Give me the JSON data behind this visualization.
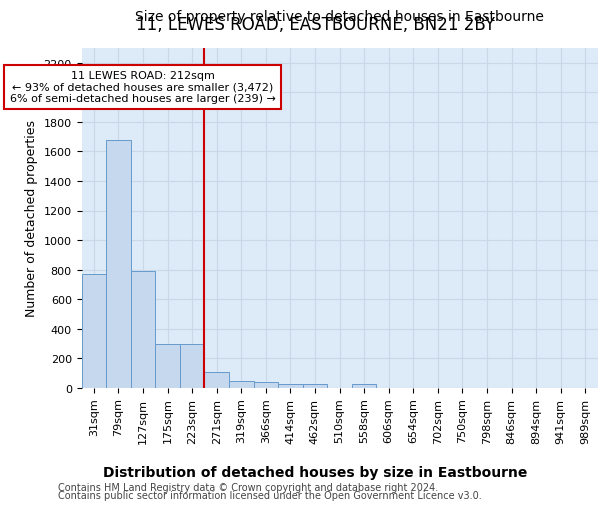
{
  "title": "11, LEWES ROAD, EASTBOURNE, BN21 2BY",
  "subtitle": "Size of property relative to detached houses in Eastbourne",
  "xlabel": "Distribution of detached houses by size in Eastbourne",
  "ylabel": "Number of detached properties",
  "footer1": "Contains HM Land Registry data © Crown copyright and database right 2024.",
  "footer2": "Contains public sector information licensed under the Open Government Licence v3.0.",
  "bin_labels": [
    "31sqm",
    "79sqm",
    "127sqm",
    "175sqm",
    "223sqm",
    "271sqm",
    "319sqm",
    "366sqm",
    "414sqm",
    "462sqm",
    "510sqm",
    "558sqm",
    "606sqm",
    "654sqm",
    "702sqm",
    "750sqm",
    "798sqm",
    "846sqm",
    "894sqm",
    "941sqm",
    "989sqm"
  ],
  "bar_values": [
    770,
    1680,
    790,
    300,
    300,
    110,
    45,
    40,
    30,
    30,
    0,
    30,
    0,
    0,
    0,
    0,
    0,
    0,
    0,
    0,
    0
  ],
  "bar_color": "#c5d8ed",
  "bar_edge_color": "#6699cc",
  "vline_x_index": 4,
  "annotation_line1": "11 LEWES ROAD: 212sqm",
  "annotation_line2": "← 93% of detached houses are smaller (3,472)",
  "annotation_line3": "6% of semi-detached houses are larger (239) →",
  "vline_color": "#cc0000",
  "ylim": [
    0,
    2300
  ],
  "yticks": [
    0,
    200,
    400,
    600,
    800,
    1000,
    1200,
    1400,
    1600,
    1800,
    2000,
    2200
  ],
  "grid_color": "#c8d8e8",
  "bg_color": "#ddeaf7",
  "fig_bg_color": "#ffffff",
  "title_fontsize": 12,
  "subtitle_fontsize": 10,
  "ylabel_fontsize": 9,
  "xlabel_fontsize": 10,
  "tick_fontsize": 8,
  "footer_fontsize": 7
}
